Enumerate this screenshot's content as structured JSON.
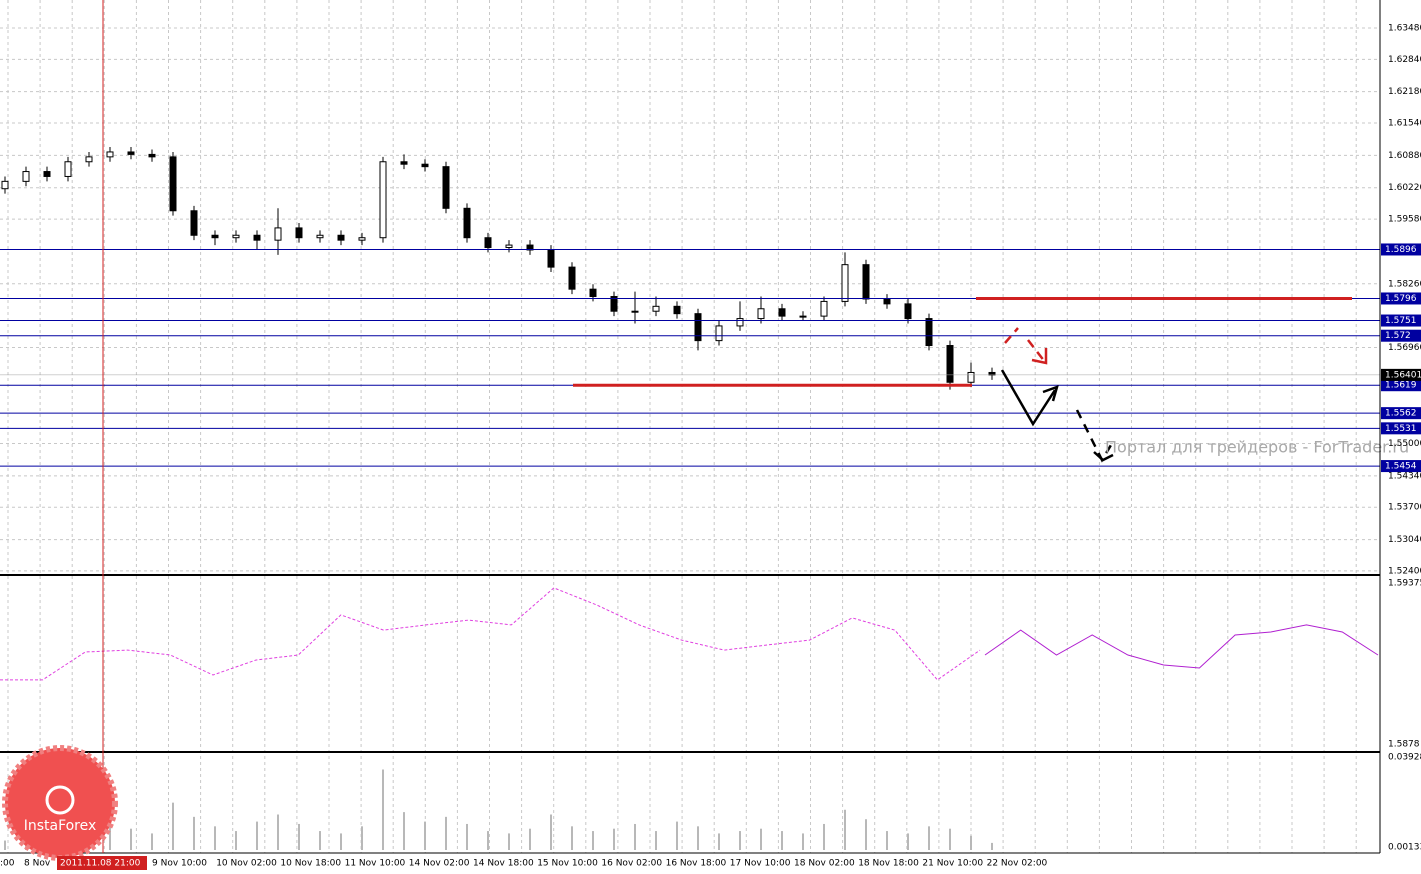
{
  "chart_data": [
    {
      "type": "candlestick",
      "open": [
        1.602,
        1.6035,
        1.6055,
        1.6045,
        1.6075,
        1.6085,
        1.6095,
        1.609,
        1.6085,
        1.5975,
        1.5925,
        1.592,
        1.5925,
        1.5915,
        1.594,
        1.592,
        1.5925,
        1.5915,
        1.592,
        1.6075,
        1.607,
        1.6065,
        1.598,
        1.592,
        1.59,
        1.5905,
        1.5895,
        1.586,
        1.5815,
        1.58,
        1.577,
        1.577,
        1.578,
        1.5765,
        1.571,
        1.574,
        1.5755,
        1.5775,
        1.576,
        1.576,
        1.579,
        1.5865,
        1.5795,
        1.5785,
        1.5755,
        1.57,
        1.5625,
        1.5645
      ],
      "high": [
        1.6045,
        1.6065,
        1.6065,
        1.6085,
        1.6095,
        1.6105,
        1.6105,
        1.61,
        1.6095,
        1.5985,
        1.5935,
        1.5935,
        1.5935,
        1.598,
        1.595,
        1.5935,
        1.5935,
        1.593,
        1.6085,
        1.609,
        1.608,
        1.6075,
        1.599,
        1.593,
        1.5915,
        1.5915,
        1.5905,
        1.587,
        1.5825,
        1.581,
        1.581,
        1.58,
        1.579,
        1.5775,
        1.575,
        1.579,
        1.58,
        1.5785,
        1.577,
        1.58,
        1.589,
        1.5875,
        1.5805,
        1.5795,
        1.5765,
        1.571,
        1.5665,
        1.5655
      ],
      "low": [
        1.601,
        1.6025,
        1.6035,
        1.6035,
        1.6065,
        1.6075,
        1.608,
        1.6075,
        1.5965,
        1.5915,
        1.5905,
        1.591,
        1.5895,
        1.5885,
        1.591,
        1.591,
        1.5905,
        1.5905,
        1.591,
        1.606,
        1.6055,
        1.597,
        1.591,
        1.589,
        1.589,
        1.5885,
        1.585,
        1.5805,
        1.579,
        1.576,
        1.5745,
        1.576,
        1.5755,
        1.569,
        1.57,
        1.573,
        1.5745,
        1.575,
        1.575,
        1.575,
        1.578,
        1.5785,
        1.5775,
        1.5745,
        1.569,
        1.561,
        1.5615,
        1.563
      ],
      "close": [
        1.6035,
        1.6055,
        1.6045,
        1.6075,
        1.6085,
        1.6095,
        1.609,
        1.6085,
        1.5975,
        1.5925,
        1.592,
        1.5925,
        1.5915,
        1.594,
        1.592,
        1.5925,
        1.5915,
        1.592,
        1.6075,
        1.607,
        1.6065,
        1.598,
        1.592,
        1.59,
        1.5905,
        1.5895,
        1.586,
        1.5815,
        1.58,
        1.577,
        1.577,
        1.578,
        1.5765,
        1.571,
        1.574,
        1.5755,
        1.5775,
        1.576,
        1.576,
        1.579,
        1.5865,
        1.5795,
        1.5785,
        1.5755,
        1.57,
        1.5625,
        1.5645,
        1.564
      ],
      "ylim": [
        1.52317,
        1.64051
      ],
      "yticks": [
        {
          "value": 1.6348,
          "label": "1.63480"
        },
        {
          "value": 1.6284,
          "label": "1.62840"
        },
        {
          "value": 1.6218,
          "label": "1.62180"
        },
        {
          "value": 1.6154,
          "label": "1.61540"
        },
        {
          "value": 1.6088,
          "label": "1.60880"
        },
        {
          "value": 1.6022,
          "label": "1.60220"
        },
        {
          "value": 1.5958,
          "label": "1.59580"
        },
        {
          "value": 1.5826,
          "label": "1.58260"
        },
        {
          "value": 1.5696,
          "label": "1.56960"
        },
        {
          "value": 1.55,
          "label": "1.55000"
        },
        {
          "value": 1.5434,
          "label": "1.54340"
        },
        {
          "value": 1.537,
          "label": "1.53700"
        },
        {
          "value": 1.5304,
          "label": "1.53040"
        },
        {
          "value": 1.524,
          "label": "1.52400"
        }
      ],
      "levels": [
        1.5896,
        1.5796,
        1.5751,
        1.572,
        1.5619,
        1.5562,
        1.5531,
        1.5454
      ],
      "level_color": "#0000a0",
      "red_lines": [
        1.5796,
        1.5619
      ],
      "current_price": 1.56401,
      "time_labels": [
        ":00",
        "8 Nov",
        "9 Nov 10:00",
        "10 Nov 02:00",
        "10 Nov 18:00",
        "11 Nov 10:00",
        "14 Nov 02:00",
        "14 Nov 18:00",
        "15 Nov 10:00",
        "16 Nov 02:00",
        "16 Nov 18:00",
        "17 Nov 10:00",
        "18 Nov 02:00",
        "18 Nov 18:00",
        "21 Nov 10:00",
        "22 Nov 02:00"
      ],
      "cursor_label": "2011.11.08 21:00",
      "watermark": "Портал для трейдеров - ForTrader.ru"
    },
    {
      "type": "line",
      "ylim": [
        1.5878,
        1.59375
      ],
      "yticks": [
        1.59375,
        1.5878
      ],
      "series": [
        {
          "color": "#e040e0",
          "style": "dashed",
          "values": [
            1.59017,
            1.59017,
            1.5912,
            1.59127,
            1.59109,
            1.59035,
            1.5909,
            1.59109,
            1.59257,
            1.59201,
            1.5922,
            1.59238,
            1.5922,
            1.59357,
            1.59294,
            1.5922,
            1.59164,
            1.59127,
            1.59146,
            1.59164,
            1.59246,
            1.59201,
            1.59017,
            1.59127
          ]
        },
        {
          "color": "#b020d0",
          "style": "solid",
          "values": [
            1.59109,
            1.59201,
            1.59109,
            1.59183,
            1.59109,
            1.59072,
            1.59061,
            1.59183,
            1.59194,
            1.5922,
            1.59194,
            1.59109
          ]
        }
      ]
    },
    {
      "type": "bar",
      "color": "#b8b8b8",
      "ylim": [
        0,
        0.03928
      ],
      "yticks": [
        0.03928,
        0.00133
      ],
      "values": [
        0.004,
        0.005,
        0.006,
        0.008,
        0.01,
        0.012,
        0.009,
        0.007,
        0.02,
        0.014,
        0.01,
        0.008,
        0.012,
        0.015,
        0.011,
        0.008,
        0.007,
        0.01,
        0.034,
        0.016,
        0.012,
        0.014,
        0.011,
        0.008,
        0.007,
        0.009,
        0.015,
        0.01,
        0.008,
        0.009,
        0.011,
        0.008,
        0.012,
        0.01,
        0.007,
        0.008,
        0.009,
        0.008,
        0.007,
        0.011,
        0.017,
        0.013,
        0.008,
        0.007,
        0.01,
        0.009,
        0.006,
        0.003
      ],
      "logo": "InstaForex"
    }
  ]
}
